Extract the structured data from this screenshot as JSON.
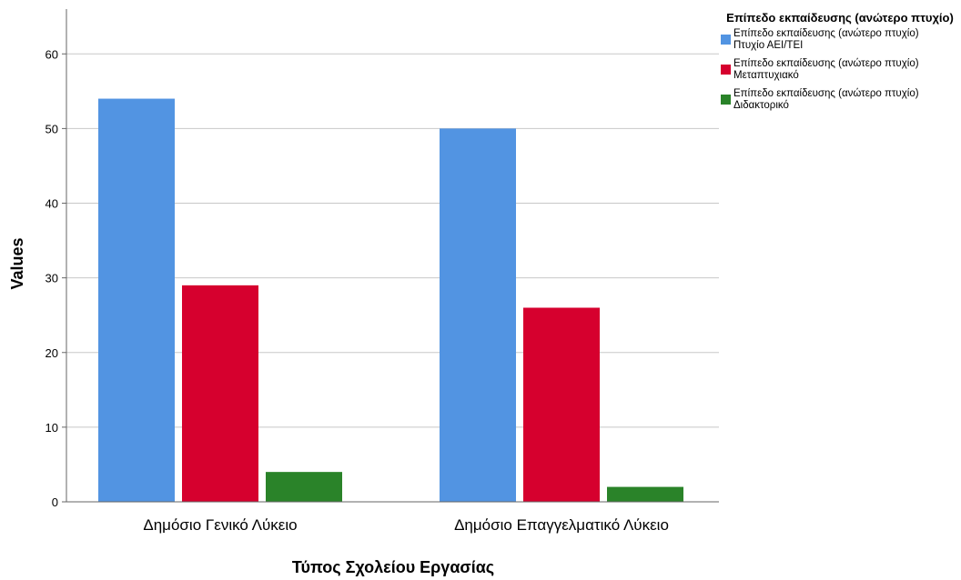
{
  "chart_data": {
    "type": "bar",
    "title": "",
    "xlabel": "Τύπος Σχολείου Εργασίας",
    "ylabel": "Values",
    "ylim": [
      0,
      66
    ],
    "yticks": [
      0,
      10,
      20,
      30,
      40,
      50,
      60
    ],
    "grid": true,
    "categories": [
      "Δημόσιο Γενικό Λύκειο",
      "Δημόσιο Επαγγελματικό Λύκειο"
    ],
    "legend": {
      "title": "Επίπεδο εκπαίδευσης (ανώτερο πτυχίο)",
      "position": "right"
    },
    "series": [
      {
        "name": "Επίπεδο εκπαίδευσης (ανώτερο πτυχίο)\nΠτυχίο ΑΕΙ/ΤΕΙ",
        "color": "#5294e2",
        "values": [
          54,
          50
        ]
      },
      {
        "name": "Επίπεδο εκπαίδευσης (ανώτερο πτυχίο)\nΜεταπτυχιακό",
        "color": "#d6002e",
        "values": [
          29,
          26
        ]
      },
      {
        "name": "Επίπεδο εκπαίδευσης (ανώτερο πτυχίο)\nΔιδακτορικό",
        "color": "#2a8329",
        "values": [
          4,
          2
        ]
      }
    ]
  }
}
